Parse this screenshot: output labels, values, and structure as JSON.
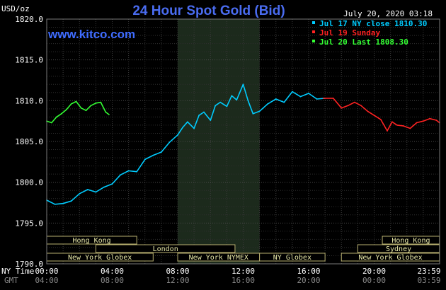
{
  "chart_data": {
    "type": "line",
    "title": "24 Hour Spot Gold (Bid)",
    "website": "www.kitco.com",
    "date_label": "July 20, 2020 03:18",
    "ylabel": "USD/oz",
    "ylim": [
      1790,
      1820
    ],
    "y_ticks": [
      "1820.0",
      "1815.0",
      "1810.0",
      "1805.0",
      "1800.0",
      "1795.0",
      "1790.0"
    ],
    "x_axis_name_primary": "NY Time",
    "x_axis_name_secondary": "GMT",
    "x_ticks_ny": [
      "00:00",
      "04:00",
      "08:00",
      "12:00",
      "16:00",
      "20:00",
      "23:59"
    ],
    "x_ticks_gmt": [
      "04:00",
      "08:00",
      "12:00",
      "16:00",
      "20:00",
      "00:00",
      "03:59"
    ],
    "grid": true,
    "legend_position": "top-right",
    "legend": [
      {
        "label": "Jul 17 NY close 1810.30",
        "color": "#00ccff"
      },
      {
        "label": "Jul 19 Sunday",
        "color": "#ff2222"
      },
      {
        "label": "Jul 20 Last 1808.30",
        "color": "#33ff33"
      }
    ],
    "highlight_band_hours": [
      8,
      13.0
    ],
    "sessions": [
      {
        "label": "Hong Kong",
        "start": 0,
        "end": 5.5,
        "row": 0
      },
      {
        "label": "Hong Kong",
        "start": 20.5,
        "end": 23.99,
        "row": 0
      },
      {
        "label": "London",
        "start": 3.0,
        "end": 11.5,
        "row": 1
      },
      {
        "label": "Sydney",
        "start": 19.0,
        "end": 23.99,
        "row": 1
      },
      {
        "label": "New York Globex",
        "start": 0,
        "end": 6.5,
        "row": 2
      },
      {
        "label": "New York NYMEX",
        "start": 8.0,
        "end": 13.0,
        "row": 2
      },
      {
        "label": "NY Globex",
        "start": 13.0,
        "end": 17.0,
        "row": 2
      },
      {
        "label": "New York Globex",
        "start": 18.0,
        "end": 23.99,
        "row": 2
      }
    ],
    "series": [
      {
        "name": "Jul 17 NY close 1810.30",
        "color": "#00ccff",
        "x": [
          0.0,
          0.5,
          1.0,
          1.5,
          2.0,
          2.5,
          3.0,
          3.5,
          4.0,
          4.5,
          5.0,
          5.5,
          6.0,
          6.5,
          7.0,
          7.5,
          8.0,
          8.3,
          8.6,
          9.0,
          9.3,
          9.6,
          10.0,
          10.3,
          10.6,
          11.0,
          11.3,
          11.6,
          12.0,
          12.3,
          12.6,
          13.0,
          13.5,
          14.0,
          14.5,
          15.0,
          15.5,
          16.0,
          16.5,
          17.0
        ],
        "y": [
          1797.8,
          1797.3,
          1797.4,
          1797.7,
          1798.6,
          1799.1,
          1798.8,
          1799.4,
          1799.8,
          1800.9,
          1801.4,
          1801.3,
          1802.8,
          1803.3,
          1803.7,
          1804.9,
          1805.8,
          1806.7,
          1807.4,
          1806.6,
          1808.2,
          1808.6,
          1807.6,
          1809.4,
          1809.8,
          1809.3,
          1810.6,
          1810.1,
          1812.0,
          1810.0,
          1808.4,
          1808.7,
          1809.6,
          1810.2,
          1809.8,
          1811.1,
          1810.5,
          1810.9,
          1810.2,
          1810.3
        ]
      },
      {
        "name": "Jul 19 Sunday",
        "color": "#ff2222",
        "x": [
          16.9,
          17.5,
          18.0,
          18.4,
          18.8,
          19.2,
          19.6,
          20.0,
          20.4,
          20.8,
          21.1,
          21.4,
          21.8,
          22.2,
          22.6,
          23.0,
          23.4,
          23.8,
          23.99
        ],
        "y": [
          1810.3,
          1810.3,
          1809.1,
          1809.4,
          1809.8,
          1809.4,
          1808.7,
          1808.2,
          1807.7,
          1806.3,
          1807.4,
          1807.0,
          1806.9,
          1806.6,
          1807.3,
          1807.5,
          1807.8,
          1807.6,
          1807.3
        ]
      },
      {
        "name": "Jul 20 Last 1808.30",
        "color": "#33ff33",
        "x": [
          0.0,
          0.3,
          0.6,
          0.9,
          1.2,
          1.5,
          1.8,
          2.1,
          2.4,
          2.7,
          3.0,
          3.3,
          3.6,
          3.8
        ],
        "y": [
          1807.5,
          1807.3,
          1808.0,
          1808.4,
          1808.9,
          1809.6,
          1809.9,
          1809.1,
          1808.8,
          1809.4,
          1809.7,
          1809.8,
          1808.6,
          1808.3
        ]
      }
    ]
  }
}
